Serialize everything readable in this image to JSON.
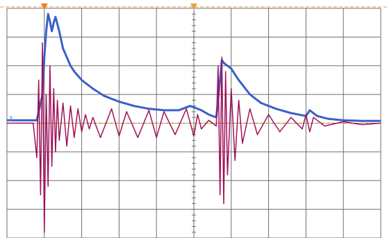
{
  "chart_data": {
    "type": "line",
    "title": "",
    "xlabel": "",
    "ylabel": "",
    "grid": true,
    "divisions": {
      "x": 10,
      "y": 8
    },
    "xlim": [
      0,
      10
    ],
    "ylim": [
      -4,
      4
    ],
    "reference_level": 0,
    "top_reference_level": 4,
    "trigger_markers": [
      {
        "x": 1.0,
        "color": "#e8801e"
      },
      {
        "x": 5.0,
        "color": "#e8a040"
      }
    ],
    "series": [
      {
        "channel_label": "3",
        "color": "#3a5fc8",
        "label_color": "#6c8ad8",
        "x": [
          0.0,
          0.8,
          0.95,
          1.0,
          1.05,
          1.1,
          1.15,
          1.2,
          1.25,
          1.3,
          1.4,
          1.5,
          1.6,
          1.7,
          1.8,
          2.0,
          2.3,
          2.6,
          3.0,
          3.4,
          3.8,
          4.2,
          4.6,
          4.8,
          4.9,
          5.0,
          5.2,
          5.4,
          5.6,
          5.7,
          5.75,
          5.8,
          5.9,
          6.0,
          6.2,
          6.5,
          6.8,
          7.2,
          7.6,
          8.0,
          8.1,
          8.3,
          8.6,
          9.0,
          9.5,
          10.0
        ],
        "y": [
          0.1,
          0.1,
          1.0,
          2.3,
          3.2,
          3.8,
          3.55,
          3.2,
          3.5,
          3.7,
          3.2,
          2.6,
          2.3,
          2.0,
          1.8,
          1.5,
          1.2,
          0.95,
          0.75,
          0.6,
          0.5,
          0.45,
          0.45,
          0.55,
          0.6,
          0.55,
          0.45,
          0.3,
          0.2,
          1.5,
          2.2,
          2.1,
          2.0,
          1.9,
          1.5,
          1.0,
          0.7,
          0.5,
          0.35,
          0.25,
          0.45,
          0.25,
          0.15,
          0.1,
          0.08,
          0.08
        ]
      },
      {
        "channel_label": "",
        "color": "#a0105a",
        "x": [
          0.0,
          0.7,
          0.8,
          0.85,
          0.9,
          0.95,
          1.0,
          1.05,
          1.1,
          1.15,
          1.2,
          1.25,
          1.3,
          1.35,
          1.4,
          1.5,
          1.6,
          1.7,
          1.8,
          1.9,
          2.0,
          2.1,
          2.2,
          2.3,
          2.5,
          2.8,
          3.0,
          3.2,
          3.5,
          3.8,
          4.0,
          4.2,
          4.5,
          4.8,
          5.0,
          5.1,
          5.2,
          5.4,
          5.6,
          5.65,
          5.7,
          5.75,
          5.8,
          5.85,
          5.9,
          6.0,
          6.1,
          6.2,
          6.3,
          6.5,
          6.7,
          7.0,
          7.3,
          7.6,
          7.9,
          8.0,
          8.1,
          8.2,
          8.5,
          9.0,
          9.5,
          10.0
        ],
        "y": [
          0.0,
          0.0,
          -1.2,
          1.5,
          -2.5,
          2.8,
          -3.8,
          1.0,
          -2.2,
          2.0,
          -1.5,
          1.2,
          -1.0,
          0.8,
          -0.6,
          0.7,
          -0.8,
          0.6,
          -0.5,
          0.5,
          -0.3,
          0.3,
          -0.2,
          0.2,
          -0.5,
          0.5,
          -0.45,
          0.4,
          -0.5,
          0.45,
          -0.5,
          0.4,
          -0.4,
          0.5,
          -0.45,
          0.3,
          -0.2,
          0.1,
          -0.1,
          2.0,
          -2.5,
          2.3,
          -2.8,
          1.8,
          -1.8,
          1.2,
          -1.3,
          0.8,
          -0.7,
          0.5,
          -0.4,
          0.3,
          -0.3,
          0.2,
          -0.2,
          0.3,
          -0.3,
          0.2,
          -0.1,
          0.05,
          -0.05,
          0.0
        ]
      }
    ]
  }
}
